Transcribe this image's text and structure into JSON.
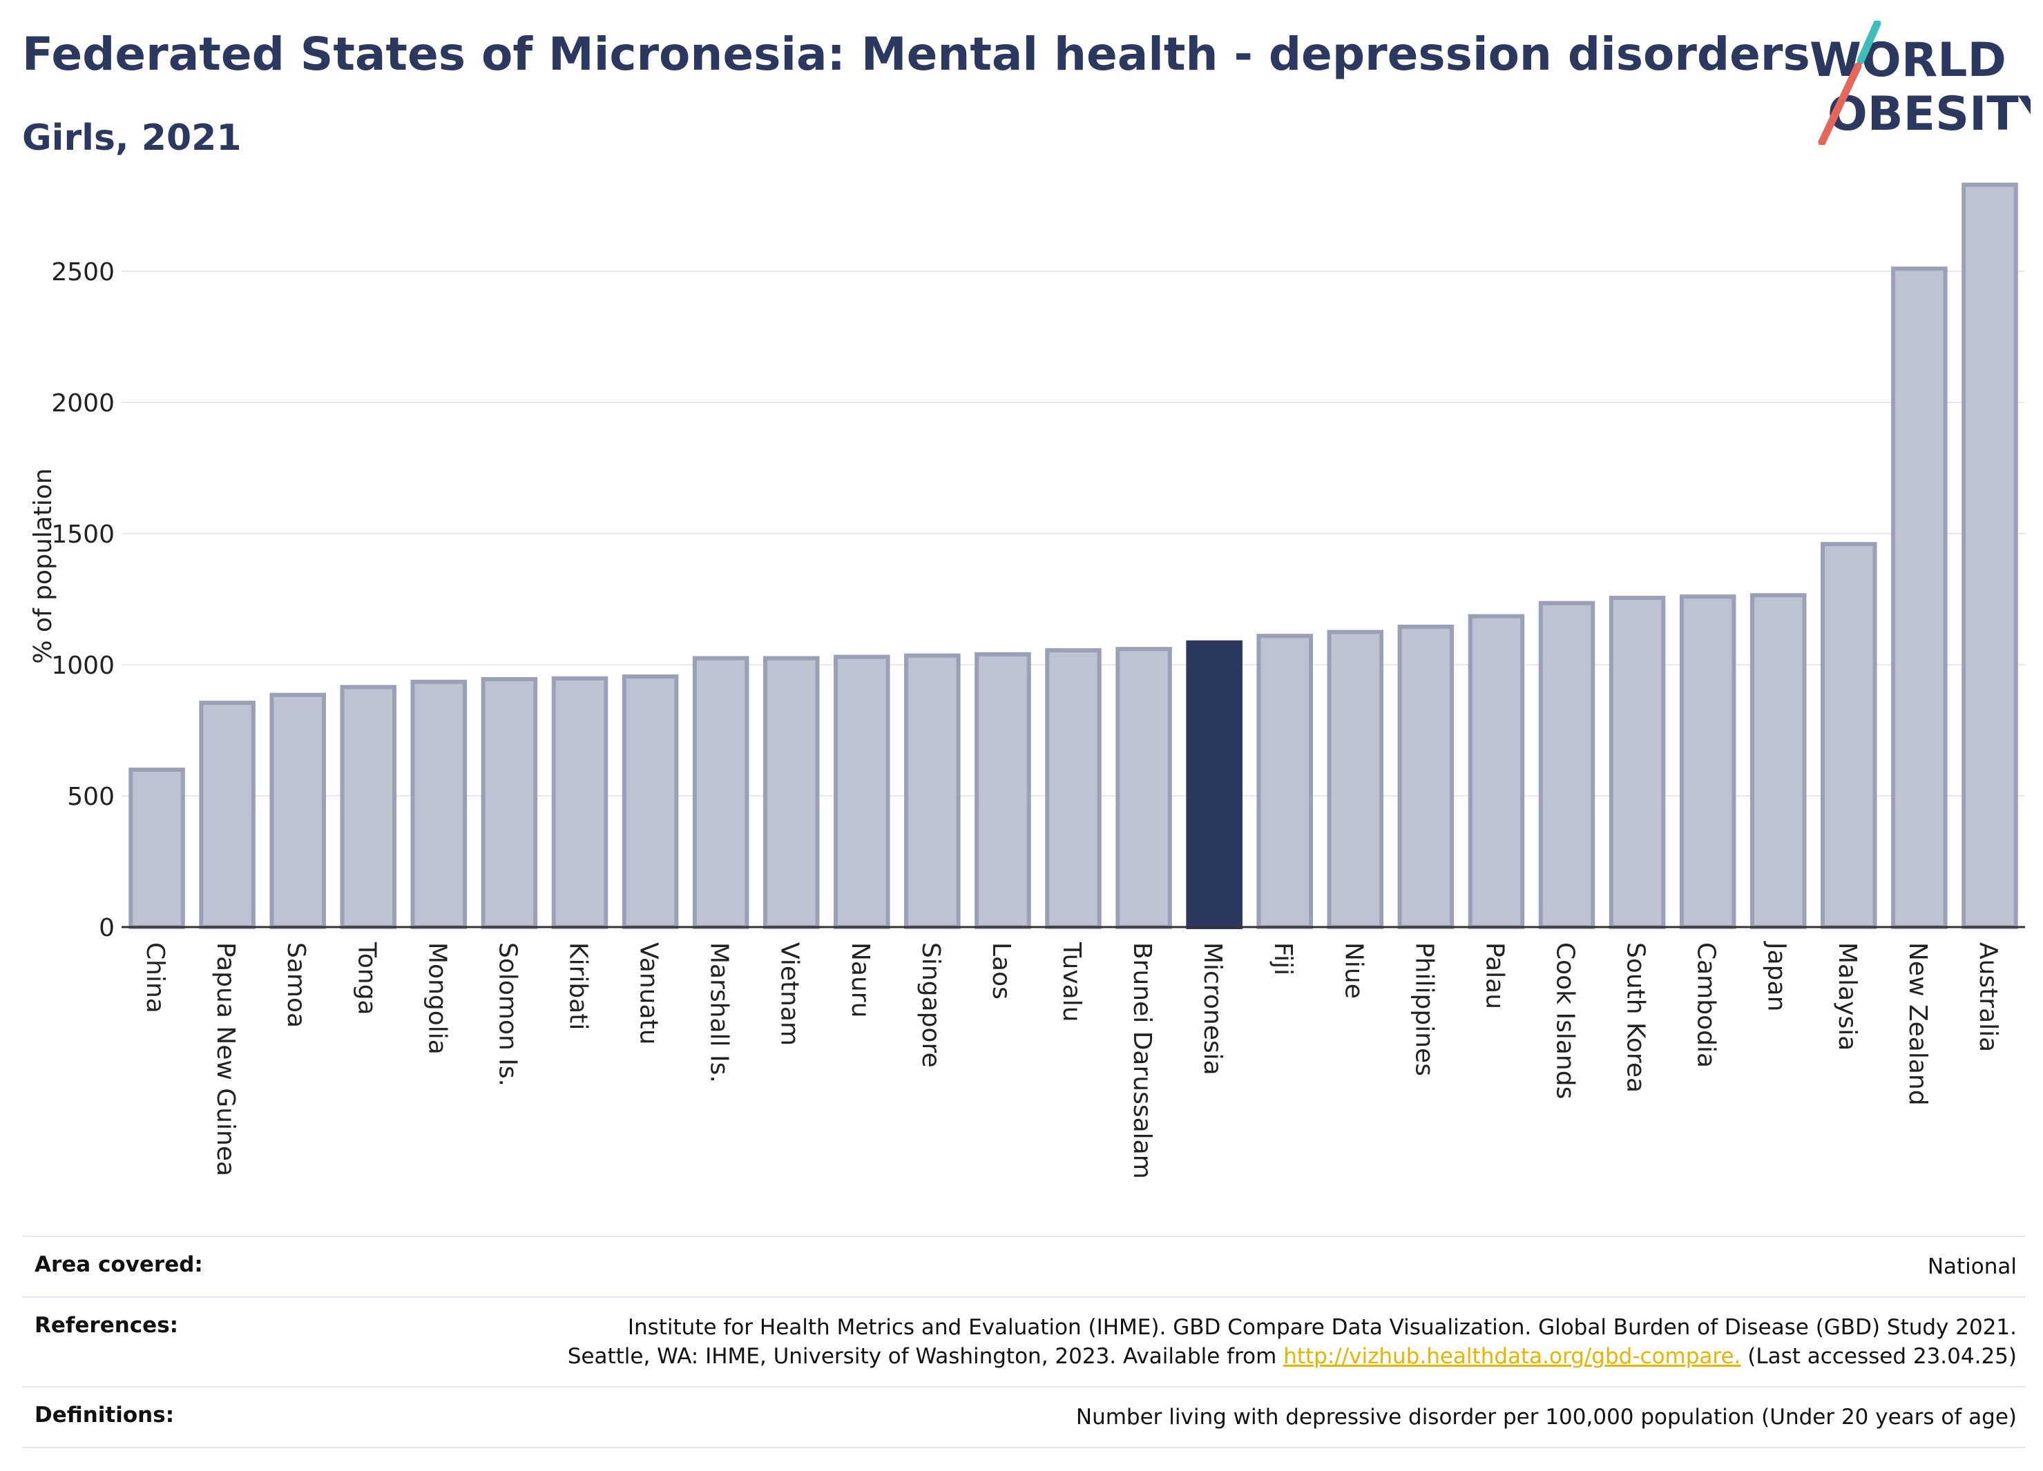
{
  "header": {
    "title": "Federated States of Micronesia: Mental health - depression disorders",
    "subtitle": "Girls, 2021"
  },
  "logo": {
    "line1": "WORLD",
    "line2": "OBESITY",
    "colors": {
      "text": "#2d3860",
      "slash_top": "#3bbfb6",
      "slash_bottom": "#e4675a"
    }
  },
  "colors": {
    "bar_fill": "#bfc3d1",
    "bar_stroke": "#9aa0b6",
    "highlight": "#2d3860",
    "axis_text": "#222222",
    "grid": "#e6e8ee"
  },
  "chart_data": {
    "type": "bar",
    "ylabel": "% of population",
    "ylim": [
      0,
      2850
    ],
    "yticks": [
      0,
      500,
      1000,
      1500,
      2000,
      2500
    ],
    "grid": true,
    "highlight_category": "Micronesia",
    "categories": [
      "China",
      "Papua New Guinea",
      "Samoa",
      "Tonga",
      "Mongolia",
      "Solomon Is.",
      "Kiribati",
      "Vanuatu",
      "Marshall Is.",
      "Vietnam",
      "Nauru",
      "Singapore",
      "Laos",
      "Tuvalu",
      "Brunei Darussalam",
      "Micronesia",
      "Fiji",
      "Niue",
      "Philippines",
      "Palau",
      "Cook Islands",
      "South Korea",
      "Cambodia",
      "Japan",
      "Malaysia",
      "New Zealand",
      "Australia"
    ],
    "values": [
      600,
      855,
      885,
      915,
      935,
      945,
      948,
      955,
      1025,
      1025,
      1030,
      1035,
      1040,
      1055,
      1060,
      1085,
      1110,
      1125,
      1145,
      1185,
      1235,
      1255,
      1260,
      1265,
      1460,
      2510,
      2830
    ]
  },
  "footer": {
    "area_label": "Area covered:",
    "area_value": "National",
    "references_label": "References:",
    "references_line1": "Institute for Health Metrics and Evaluation (IHME). GBD Compare Data Visualization. Global Burden of Disease (GBD) Study 2021.",
    "references_line2_prefix": "Seattle, WA: IHME, University of Washington, 2023. Available from ",
    "references_link": "http://vizhub.healthdata.org/gbd-compare.",
    "references_line2_suffix": " (Last accessed 23.04.25)",
    "definitions_label": "Definitions:",
    "definitions_value": "Number living with depressive disorder per 100,000 population (Under 20 years of age)"
  }
}
